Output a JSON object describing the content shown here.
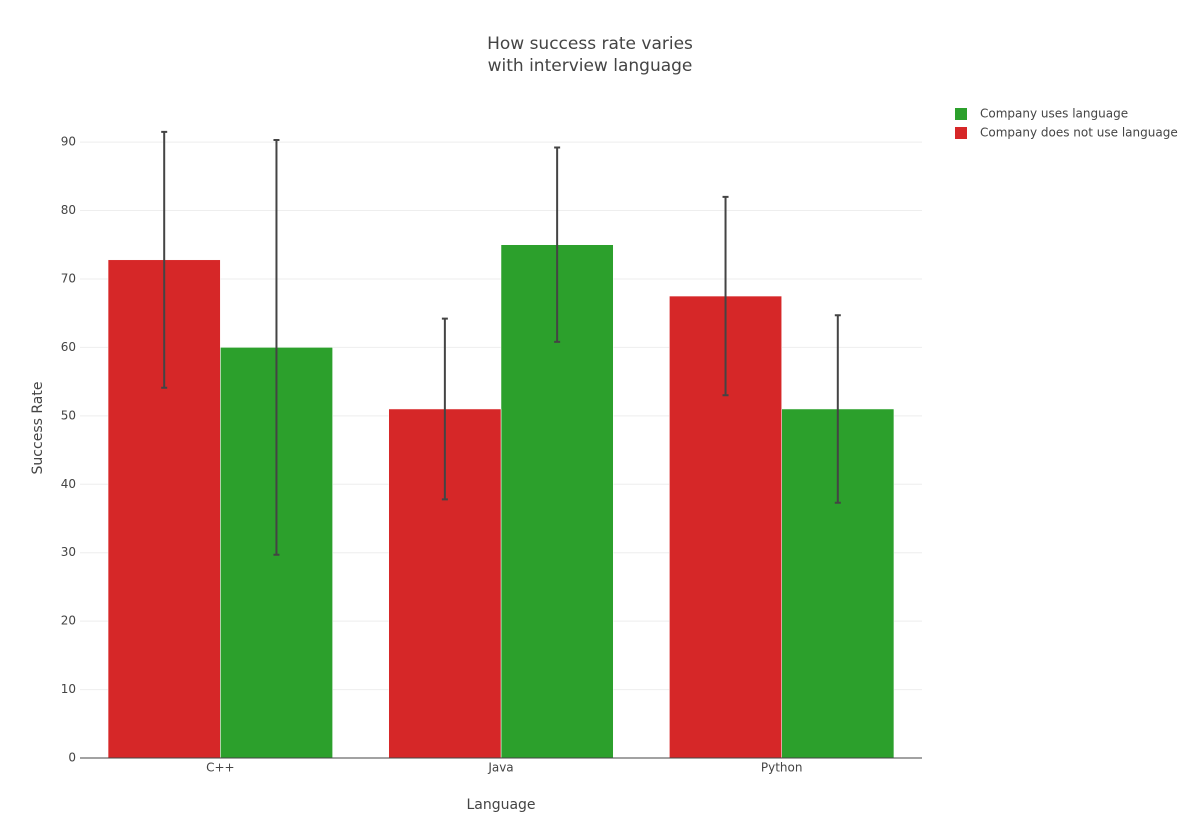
{
  "chart_data": {
    "type": "bar",
    "title": [
      "How success rate varies",
      "with interview language"
    ],
    "x_label": "Language",
    "y_label": "Success Rate",
    "categories": [
      "C++",
      "Java",
      "Python"
    ],
    "series": [
      {
        "name": "Company uses language",
        "color": "#2ca02c",
        "values": [
          60,
          75,
          51
        ],
        "error": [
          30.3,
          14.2,
          13.7
        ]
      },
      {
        "name": "Company does not use language",
        "color": "#d62728",
        "values": [
          72.8,
          51,
          67.5
        ],
        "error": [
          18.7,
          13.2,
          14.5
        ]
      }
    ],
    "ylim": [
      0,
      96.5
    ],
    "yticks": [
      0,
      10,
      20,
      30,
      40,
      50,
      60,
      70,
      80,
      90
    ],
    "grid": true
  }
}
